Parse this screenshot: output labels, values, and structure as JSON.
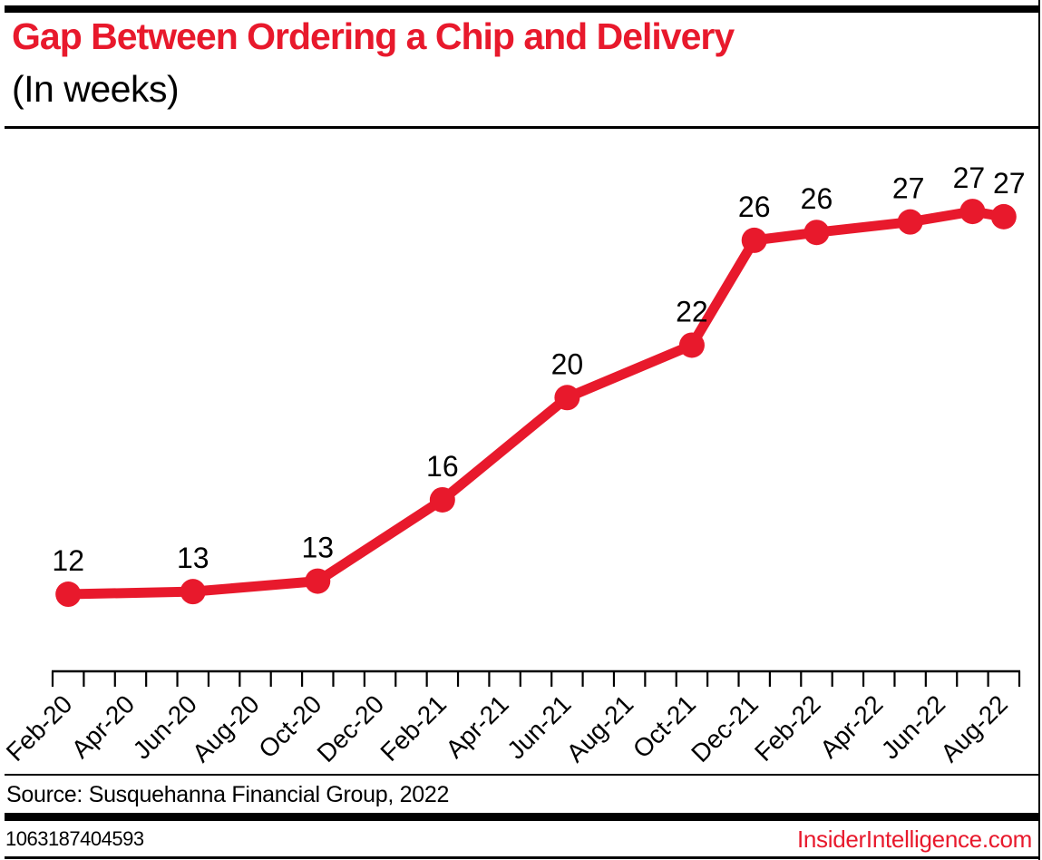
{
  "page": {
    "background": "#ffffff",
    "accent_red": "#e8192c",
    "rule_color": "#000000"
  },
  "header": {
    "title": "Gap Between Ordering a Chip and Delivery",
    "subtitle": "(In weeks)"
  },
  "chart_data": {
    "type": "line",
    "title": "Gap Between Ordering a Chip and Delivery",
    "unit_label": "(In weeks)",
    "line_color": "#e8192c",
    "marker_color": "#e8192c",
    "grid": "off",
    "legend_position": "none",
    "x_axis": {
      "tick_labels": [
        "Feb-20",
        "Apr-20",
        "Jun-20",
        "Aug-20",
        "Oct-20",
        "Dec-20",
        "Feb-21",
        "Apr-21",
        "Jun-21",
        "Aug-21",
        "Oct-21",
        "Dec-21",
        "Feb-22",
        "Apr-22",
        "Jun-22",
        "Aug-22"
      ],
      "months_spanned": 31,
      "label_rotation_deg": -45
    },
    "y_axis": {
      "visible": false,
      "approx_range": [
        9.5,
        29.2
      ]
    },
    "points": [
      {
        "month": "Feb-20",
        "month_index": 0,
        "value": 12.4,
        "label": "12"
      },
      {
        "month": "Jun-20",
        "month_index": 4,
        "value": 12.5,
        "label": "13"
      },
      {
        "month": "Oct-20",
        "month_index": 8,
        "value": 12.9,
        "label": "13"
      },
      {
        "month": "Feb-21",
        "month_index": 12,
        "value": 16.0,
        "label": "16"
      },
      {
        "month": "Jun-21",
        "month_index": 16,
        "value": 19.9,
        "label": "20"
      },
      {
        "month": "Oct-21",
        "month_index": 20,
        "value": 21.9,
        "label": "22"
      },
      {
        "month": "Dec-21",
        "month_index": 22,
        "value": 25.9,
        "label": "26"
      },
      {
        "month": "Feb-22",
        "month_index": 24,
        "value": 26.2,
        "label": "26"
      },
      {
        "month": "May-22",
        "month_index": 27,
        "value": 26.6,
        "label": "27",
        "label_dx": -2
      },
      {
        "month": "Jul-22",
        "month_index": 29,
        "value": 27.0,
        "label": "27",
        "label_dx": -4
      },
      {
        "month": "Aug-22",
        "month_index": 30,
        "value": 26.8,
        "label": "27",
        "label_dx": 6
      }
    ]
  },
  "footer": {
    "source": "Source: Susquehanna Financial Group, 2022",
    "id_code": "1063187404593",
    "site": "InsiderIntelligence.com"
  }
}
